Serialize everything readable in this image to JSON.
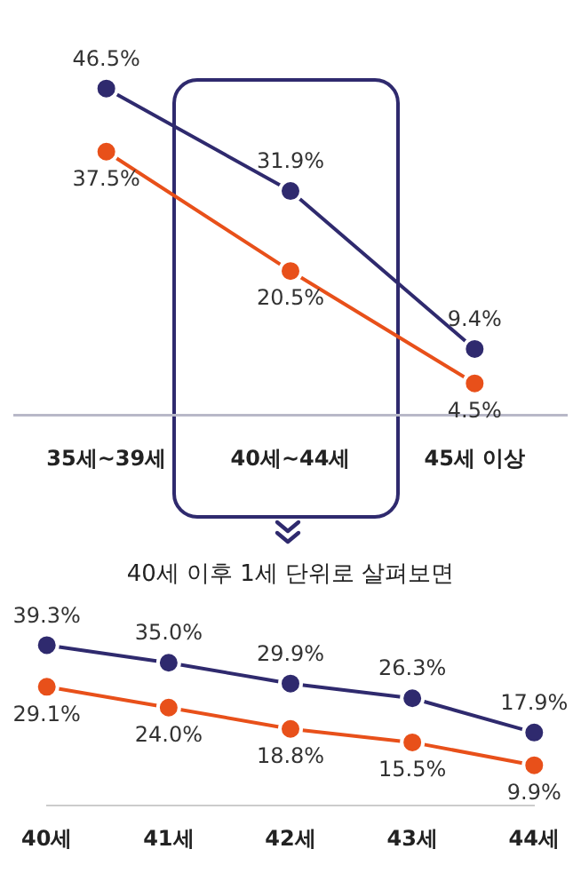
{
  "chart_data": [
    {
      "type": "line",
      "categories": [
        "35세~39세",
        "40세~44세",
        "45세 이상"
      ],
      "marker": "circle",
      "line_style": "solid",
      "grid": false,
      "legend": false,
      "tick_labels": "x",
      "series": [
        {
          "color": "#2f2a6e",
          "values": [
            46.5,
            31.9,
            9.4
          ],
          "value_labels": [
            "46.5%",
            "31.9%",
            "9.4%"
          ]
        },
        {
          "color": "#e8501a",
          "values": [
            37.5,
            20.5,
            4.5
          ],
          "value_labels": [
            "37.5%",
            "20.5%",
            "4.5%"
          ]
        }
      ]
    },
    {
      "type": "line",
      "title": "40세 이후 1세 단위로 살펴보면",
      "categories": [
        "40세",
        "41세",
        "42세",
        "43세",
        "44세"
      ],
      "marker": "circle",
      "line_style": "solid",
      "grid": false,
      "legend": false,
      "tick_labels": "x",
      "series": [
        {
          "color": "#2f2a6e",
          "values": [
            39.3,
            35.0,
            29.9,
            26.3,
            17.9
          ],
          "value_labels": [
            "39.3%",
            "35.0%",
            "29.9%",
            "26.3%",
            "17.9%"
          ]
        },
        {
          "color": "#e8501a",
          "values": [
            29.1,
            24.0,
            18.8,
            15.5,
            9.9
          ],
          "value_labels": [
            "29.1%",
            "24.0%",
            "18.8%",
            "15.5%",
            "9.9%"
          ]
        }
      ]
    }
  ]
}
